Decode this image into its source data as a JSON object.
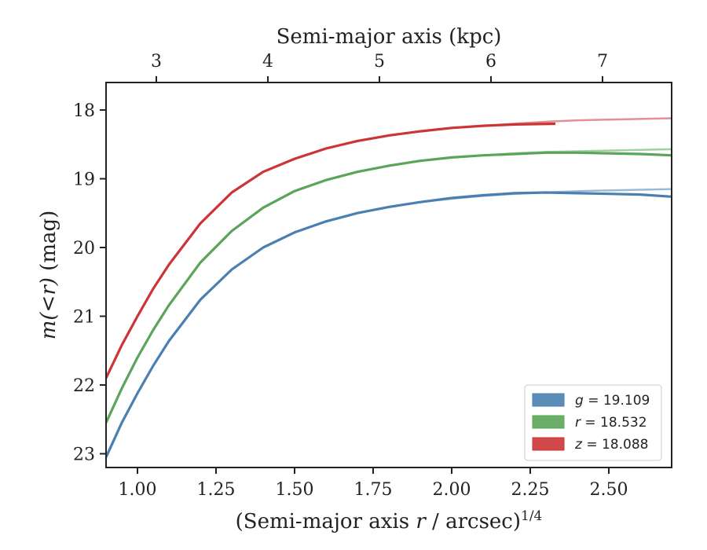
{
  "chart_data": {
    "type": "line",
    "xlabel": "(Semi-major axis r / arcsec)^1/4",
    "xlabel_parts": {
      "prefix": "(Semi-major axis ",
      "var": "r",
      "mid": " / arcsec)",
      "sup": "1/4"
    },
    "top_xlabel": "Semi-major axis (kpc)",
    "ylabel": "m(<r) (mag)",
    "ylabel_parts": {
      "prefix": "m(<r)",
      "suffix": " (mag)"
    },
    "xlim": [
      0.9,
      2.7
    ],
    "ylim": [
      23.2,
      17.6
    ],
    "y_inverted": true,
    "x_ticks": [
      1.0,
      1.25,
      1.5,
      1.75,
      2.0,
      2.25,
      2.5
    ],
    "x_tick_labels": [
      "1.00",
      "1.25",
      "1.50",
      "1.75",
      "2.00",
      "2.25",
      "2.50"
    ],
    "y_ticks": [
      18,
      19,
      20,
      21,
      22,
      23
    ],
    "y_tick_labels": [
      "18",
      "19",
      "20",
      "21",
      "22",
      "23"
    ],
    "top_ticks_kpc": [
      3,
      4,
      5,
      6,
      7
    ],
    "top_tick_labels": [
      "3",
      "4",
      "5",
      "6",
      "7"
    ],
    "top_tick_positions_x": [
      1.06,
      1.415,
      1.77,
      2.125,
      2.48
    ],
    "legend_placement": "lower-right",
    "grid": false,
    "series": [
      {
        "name": "g = 19.109",
        "band": "g",
        "value": "19.109",
        "color": "#4a7fb0",
        "x": [
          0.9,
          0.95,
          1.0,
          1.05,
          1.1,
          1.2,
          1.3,
          1.4,
          1.5,
          1.6,
          1.7,
          1.8,
          1.9,
          2.0,
          2.1,
          2.2,
          2.3,
          2.4,
          2.5,
          2.6,
          2.7
        ],
        "y": [
          23.05,
          22.55,
          22.12,
          21.72,
          21.36,
          20.76,
          20.32,
          20.0,
          19.78,
          19.62,
          19.5,
          19.41,
          19.34,
          19.28,
          19.24,
          19.21,
          19.2,
          19.21,
          19.22,
          19.23,
          19.26
        ],
        "model_y": [
          23.05,
          22.55,
          22.12,
          21.72,
          21.36,
          20.76,
          20.32,
          20.0,
          19.78,
          19.62,
          19.5,
          19.41,
          19.34,
          19.29,
          19.25,
          19.22,
          19.2,
          19.18,
          19.17,
          19.16,
          19.15
        ]
      },
      {
        "name": "r = 18.532",
        "band": "r",
        "value": "18.532",
        "color": "#5aa55a",
        "x": [
          0.9,
          0.95,
          1.0,
          1.05,
          1.1,
          1.2,
          1.3,
          1.4,
          1.5,
          1.6,
          1.7,
          1.8,
          1.9,
          2.0,
          2.1,
          2.2,
          2.3,
          2.4,
          2.5,
          2.6,
          2.7
        ],
        "y": [
          22.55,
          22.05,
          21.6,
          21.2,
          20.84,
          20.22,
          19.76,
          19.42,
          19.18,
          19.02,
          18.9,
          18.81,
          18.74,
          18.69,
          18.66,
          18.64,
          18.62,
          18.62,
          18.63,
          18.64,
          18.66
        ],
        "model_y": [
          22.55,
          22.05,
          21.6,
          21.2,
          20.84,
          20.22,
          19.76,
          19.42,
          19.18,
          19.02,
          18.9,
          18.81,
          18.74,
          18.69,
          18.66,
          18.63,
          18.61,
          18.6,
          18.59,
          18.58,
          18.57
        ]
      },
      {
        "name": "z = 18.088",
        "band": "z",
        "value": "18.088",
        "color": "#cc3535",
        "x": [
          0.9,
          0.95,
          1.0,
          1.05,
          1.1,
          1.2,
          1.3,
          1.4,
          1.5,
          1.6,
          1.7,
          1.8,
          1.9,
          2.0,
          2.1,
          2.2,
          2.33
        ],
        "y": [
          21.9,
          21.42,
          21.0,
          20.6,
          20.25,
          19.65,
          19.2,
          18.9,
          18.71,
          18.56,
          18.45,
          18.37,
          18.31,
          18.26,
          18.23,
          18.21,
          18.2
        ],
        "model_x": [
          0.9,
          0.95,
          1.0,
          1.05,
          1.1,
          1.2,
          1.3,
          1.4,
          1.5,
          1.6,
          1.7,
          1.8,
          1.9,
          2.0,
          2.1,
          2.2,
          2.3,
          2.4,
          2.5,
          2.6,
          2.7
        ],
        "model_y": [
          21.9,
          21.42,
          21.0,
          20.6,
          20.25,
          19.65,
          19.2,
          18.9,
          18.71,
          18.56,
          18.45,
          18.37,
          18.31,
          18.26,
          18.23,
          18.2,
          18.17,
          18.15,
          18.14,
          18.13,
          18.12
        ]
      }
    ]
  }
}
